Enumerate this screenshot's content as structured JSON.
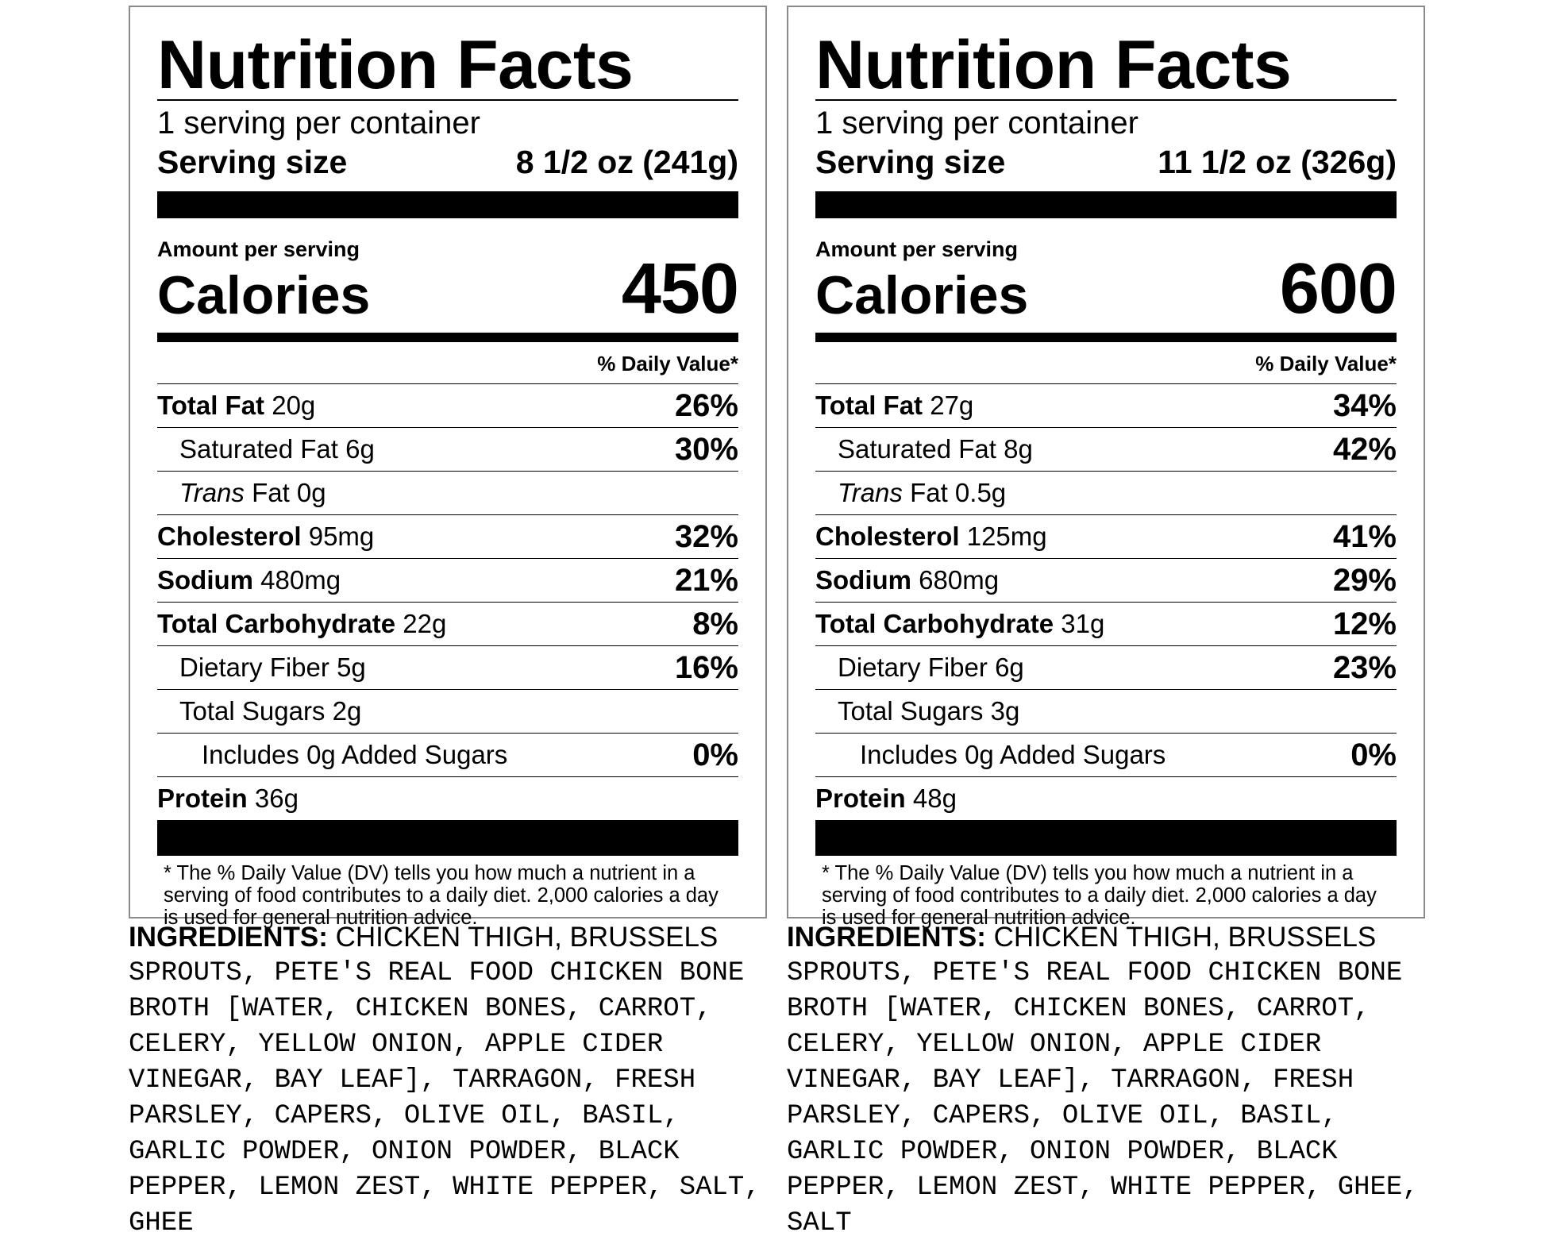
{
  "labels": [
    {
      "title": "Nutrition Facts",
      "servings": "1 serving per container",
      "serving_size_label": "Serving size",
      "serving_size_value": "8 1/2 oz (241g)",
      "amount_per_serving": "Amount per serving",
      "calories_label": "Calories",
      "calories_value": "450",
      "dv_header": "% Daily Value*",
      "nutrients": [
        {
          "name": "Total Fat",
          "amount": "20g",
          "dv": "26%"
        },
        {
          "name": "Saturated Fat",
          "amount": "6g",
          "dv": "30%"
        },
        {
          "name": "Trans",
          "amount": "Fat 0g",
          "dv": ""
        },
        {
          "name": "Cholesterol",
          "amount": "95mg",
          "dv": "32%"
        },
        {
          "name": "Sodium",
          "amount": "480mg",
          "dv": "21%"
        },
        {
          "name": "Total Carbohydrate",
          "amount": "22g",
          "dv": "8%"
        },
        {
          "name": "Dietary Fiber",
          "amount": "5g",
          "dv": "16%"
        },
        {
          "name": "Total Sugars",
          "amount": "2g",
          "dv": ""
        },
        {
          "name": "Includes 0g Added Sugars",
          "amount": "",
          "dv": "0%"
        },
        {
          "name": "Protein",
          "amount": "36g",
          "dv": ""
        }
      ],
      "footnote": "* The % Daily Value (DV) tells you how much a nutrient in a serving of food contributes to a daily diet. 2,000 calories a day is used for general nutrition advice.",
      "ingredients_heading": "INGREDIENTS:",
      "ingredients_first": "CHICKEN THIGH, BRUSSELS",
      "ingredients_rest": "SPROUTS, PETE'S REAL FOOD CHICKEN BONE BROTH [WATER, CHICKEN BONES, CARROT, CELERY, YELLOW ONION, APPLE CIDER VINEGAR, BAY LEAF], TARRAGON, FRESH PARSLEY, CAPERS, OLIVE OIL, BASIL, GARLIC POWDER, ONION POWDER, BLACK PEPPER, LEMON ZEST, WHITE PEPPER, SALT, GHEE"
    },
    {
      "title": "Nutrition Facts",
      "servings": "1 serving per container",
      "serving_size_label": "Serving size",
      "serving_size_value": "11 1/2 oz (326g)",
      "amount_per_serving": "Amount per serving",
      "calories_label": "Calories",
      "calories_value": "600",
      "dv_header": "% Daily Value*",
      "nutrients": [
        {
          "name": "Total Fat",
          "amount": "27g",
          "dv": "34%"
        },
        {
          "name": "Saturated Fat",
          "amount": "8g",
          "dv": "42%"
        },
        {
          "name": "Trans",
          "amount": "Fat 0.5g",
          "dv": ""
        },
        {
          "name": "Cholesterol",
          "amount": "125mg",
          "dv": "41%"
        },
        {
          "name": "Sodium",
          "amount": "680mg",
          "dv": "29%"
        },
        {
          "name": "Total Carbohydrate",
          "amount": "31g",
          "dv": "12%"
        },
        {
          "name": "Dietary Fiber",
          "amount": "6g",
          "dv": "23%"
        },
        {
          "name": "Total Sugars",
          "amount": "3g",
          "dv": ""
        },
        {
          "name": "Includes 0g Added Sugars",
          "amount": "",
          "dv": "0%"
        },
        {
          "name": "Protein",
          "amount": "48g",
          "dv": ""
        }
      ],
      "footnote": "* The % Daily Value (DV) tells you how much a nutrient in a serving of food contributes to a daily diet. 2,000 calories a day is used for general nutrition advice.",
      "ingredients_heading": "INGREDIENTS:",
      "ingredients_first": "CHICKEN THIGH, BRUSSELS",
      "ingredients_rest": "SPROUTS, PETE'S REAL FOOD CHICKEN BONE BROTH [WATER, CHICKEN BONES, CARROT, CELERY, YELLOW ONION, APPLE CIDER VINEGAR, BAY LEAF], TARRAGON, FRESH PARSLEY, CAPERS, OLIVE OIL, BASIL, GARLIC POWDER, ONION POWDER, BLACK PEPPER, LEMON ZEST, WHITE PEPPER, GHEE, SALT"
    }
  ]
}
